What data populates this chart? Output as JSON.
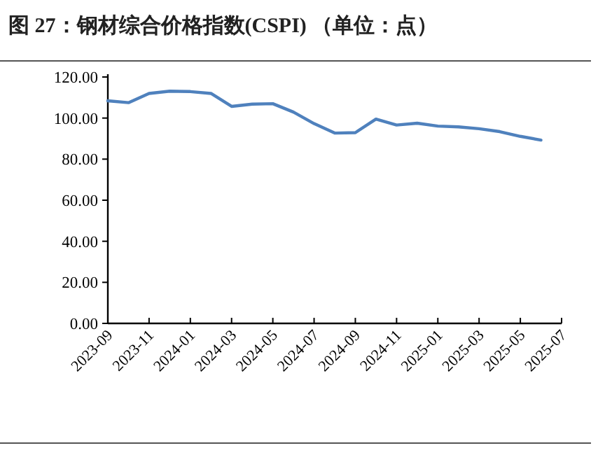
{
  "chart_data": {
    "type": "line",
    "title": "图 27：钢材综合价格指数(CSPI) （单位：点）",
    "x": [
      "2023-09",
      "2023-10",
      "2023-11",
      "2023-12",
      "2024-01",
      "2024-02",
      "2024-03",
      "2024-04",
      "2024-05",
      "2024-06",
      "2024-07",
      "2024-08",
      "2024-09",
      "2024-10",
      "2024-11",
      "2024-12",
      "2025-01",
      "2025-02",
      "2025-03",
      "2025-04",
      "2025-05",
      "2025-06"
    ],
    "series": [
      {
        "color": "#4f81bd",
        "values": [
          108.4,
          107.5,
          112,
          113.1,
          112.9,
          112,
          105.7,
          106.8,
          107,
          102.9,
          97.3,
          92.7,
          92.9,
          99.5,
          96.6,
          97.5,
          96.1,
          95.7,
          94.8,
          93.4,
          91.1,
          89.3
        ]
      }
    ],
    "xlim": [
      "2023-09",
      "2025-07"
    ],
    "xticks": [
      "2023-09",
      "2023-11",
      "2024-01",
      "2024-03",
      "2024-05",
      "2024-07",
      "2024-09",
      "2024-11",
      "2025-01",
      "2025-03",
      "2025-05",
      "2025-07"
    ],
    "ylim": [
      0,
      120
    ],
    "yticks": [
      {
        "value": 0,
        "label": "0.00"
      },
      {
        "value": 20,
        "label": "20.00"
      },
      {
        "value": 40,
        "label": "40.00"
      },
      {
        "value": 60,
        "label": "60.00"
      },
      {
        "value": 80,
        "label": "80.00"
      },
      {
        "value": 100,
        "label": "100.00"
      },
      {
        "value": 120,
        "label": "120.00"
      }
    ],
    "marker": "none",
    "line_style": "solid"
  }
}
